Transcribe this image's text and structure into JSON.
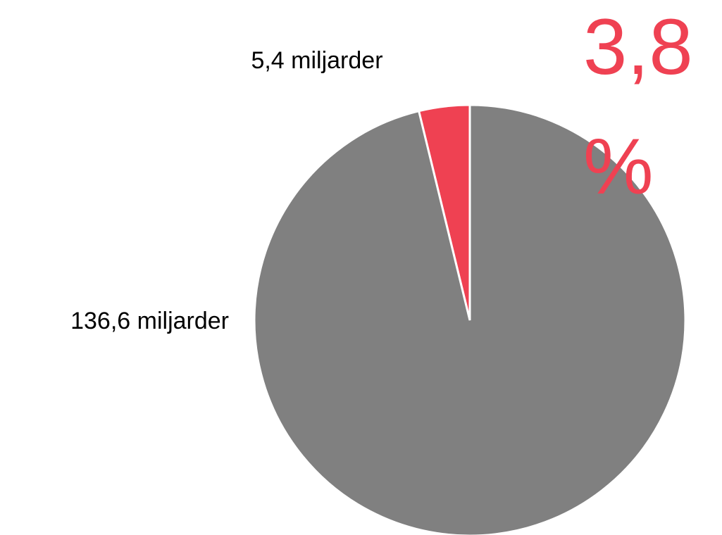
{
  "chart_data": {
    "type": "pie",
    "values": [
      5.4,
      136.6
    ],
    "value_labels": [
      "5,4 miljarder",
      "136,6 miljarder"
    ],
    "colors": [
      "#ef4152",
      "#808080"
    ],
    "annotation": "3,8 %"
  }
}
